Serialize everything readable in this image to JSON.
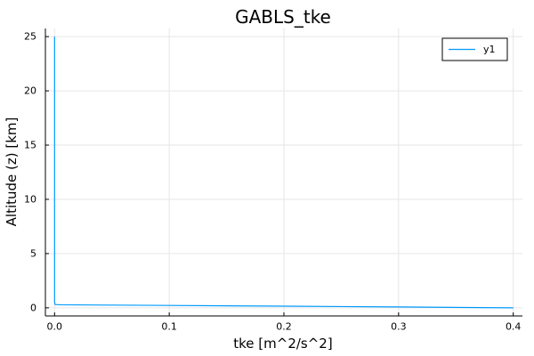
{
  "chart_data": {
    "type": "line",
    "title": "GABLS_tke",
    "xlabel": "tke [m^2/s^2]",
    "ylabel": "Altitude (z) [km]",
    "xlim": [
      -0.008,
      0.408
    ],
    "ylim": [
      -0.75,
      25.75
    ],
    "xticks": [
      0.0,
      0.1,
      0.2,
      0.3,
      0.4
    ],
    "xtick_labels": [
      "0.0",
      "0.1",
      "0.2",
      "0.3",
      "0.4"
    ],
    "yticks": [
      0,
      5,
      10,
      15,
      20,
      25
    ],
    "ytick_labels": [
      "0",
      "5",
      "10",
      "15",
      "20",
      "25"
    ],
    "grid": true,
    "legend": {
      "position": "top-right"
    },
    "series": [
      {
        "name": "y1",
        "color": "#009AFA",
        "x": [
          0.4,
          0.3,
          0.2,
          0.1,
          0.05,
          0.02,
          0.005,
          0.0005,
          0.0,
          0.0
        ],
        "y": [
          0.0,
          0.08,
          0.15,
          0.22,
          0.25,
          0.27,
          0.28,
          0.3,
          0.5,
          25.0
        ]
      }
    ]
  }
}
